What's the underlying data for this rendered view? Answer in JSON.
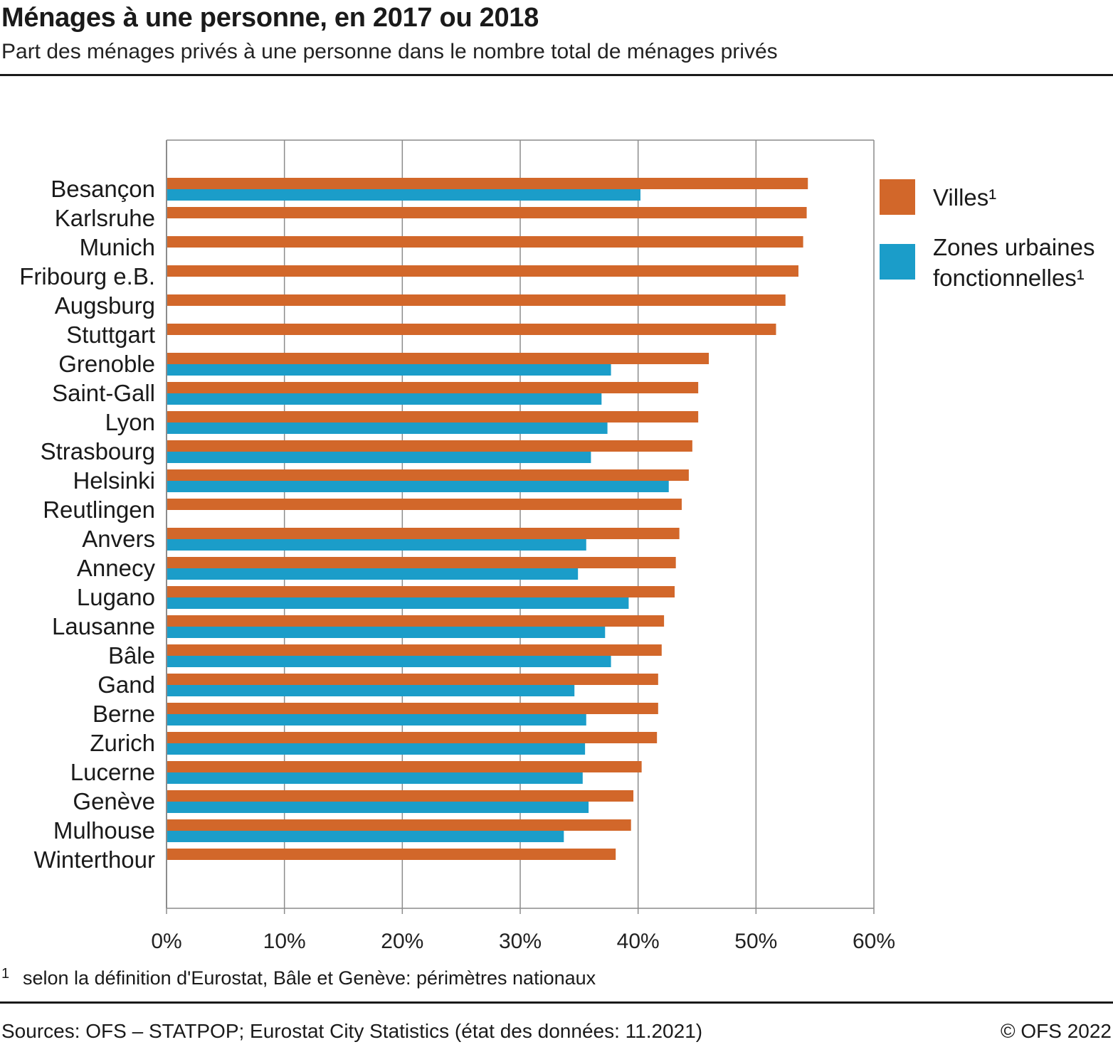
{
  "header": {
    "title": "Ménages à une personne, en 2017 ou 2018",
    "subtitle": "Part des ménages privés à une personne dans le nombre total de ménages privés"
  },
  "colors": {
    "villes": "#d2672a",
    "zones": "#1b9dc9",
    "grid": "#8c8c8c"
  },
  "legend": {
    "villes": "Villes¹",
    "zones_line1": "Zones urbaines",
    "zones_line2": "fonctionnelles¹"
  },
  "chart_data": {
    "type": "bar",
    "orientation": "horizontal",
    "title": "Ménages à une personne, en 2017 ou 2018",
    "xlim": [
      0,
      60
    ],
    "x_ticks": [
      "0%",
      "10%",
      "20%",
      "30%",
      "40%",
      "50%",
      "60%"
    ],
    "grid": true,
    "legend_position": "right",
    "categories": [
      "Besançon",
      "Karlsruhe",
      "Munich",
      "Fribourg e.B.",
      "Augsburg",
      "Stuttgart",
      "Grenoble",
      "Saint-Gall",
      "Lyon",
      "Strasbourg",
      "Helsinki",
      "Reutlingen",
      "Anvers",
      "Annecy",
      "Lugano",
      "Lausanne",
      "Bâle",
      "Gand",
      "Berne",
      "Zurich",
      "Lucerne",
      "Genève",
      "Mulhouse",
      "Winterthour"
    ],
    "series": [
      {
        "name": "Villes¹",
        "values": [
          54.4,
          54.3,
          54.0,
          53.6,
          52.5,
          51.7,
          46.0,
          45.1,
          45.1,
          44.6,
          44.3,
          43.7,
          43.5,
          43.2,
          43.1,
          42.2,
          42.0,
          41.7,
          41.7,
          41.6,
          40.3,
          39.6,
          39.4,
          38.1
        ]
      },
      {
        "name": "Zones urbaines fonctionnelles¹",
        "values": [
          40.2,
          null,
          null,
          null,
          null,
          null,
          37.7,
          36.9,
          37.4,
          36.0,
          42.6,
          null,
          35.6,
          34.9,
          39.2,
          37.2,
          37.7,
          34.6,
          35.6,
          35.5,
          35.3,
          35.8,
          33.7,
          null
        ]
      }
    ]
  },
  "footnote": {
    "mark": "1",
    "text": "selon la définition d'Eurostat, Bâle et Genève: périmètres nationaux"
  },
  "source": "Sources: OFS – STATPOP; Eurostat City Statistics (état des données: 11.2021)",
  "copyright": "© OFS 2022"
}
